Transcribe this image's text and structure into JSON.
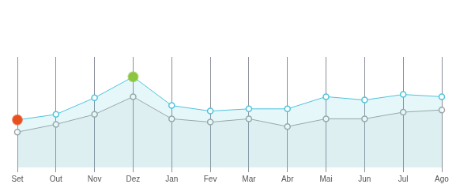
{
  "chart_data": {
    "type": "line",
    "categories": [
      "Set",
      "Out",
      "Nov",
      "Dez",
      "Jan",
      "Fev",
      "Mar",
      "Abr",
      "Mai",
      "Jun",
      "Jul",
      "Ago"
    ],
    "series": [
      {
        "color": "#4fc3dc",
        "marker": "circle",
        "values": [
          43,
          48,
          63,
          82,
          56,
          51,
          53,
          53,
          64,
          61,
          66,
          64
        ],
        "colors": [
          "#e8501e",
          "#4fc3dc",
          "#4fc3dc",
          "#8cc63f",
          "#4fc3dc",
          "#4fc3dc",
          "#4fc3dc",
          "#4fc3dc",
          "#4fc3dc",
          "#4fc3dc",
          "#4fc3dc",
          "#4fc3dc"
        ]
      },
      {
        "color": "#a3a3a3",
        "marker": "circle",
        "values": [
          32,
          39,
          48,
          64,
          44,
          41,
          44,
          37,
          44,
          44,
          50,
          52
        ]
      }
    ],
    "ylim": [
      0,
      100
    ],
    "yticks": [],
    "grid": true,
    "tick_labels": "x"
  }
}
